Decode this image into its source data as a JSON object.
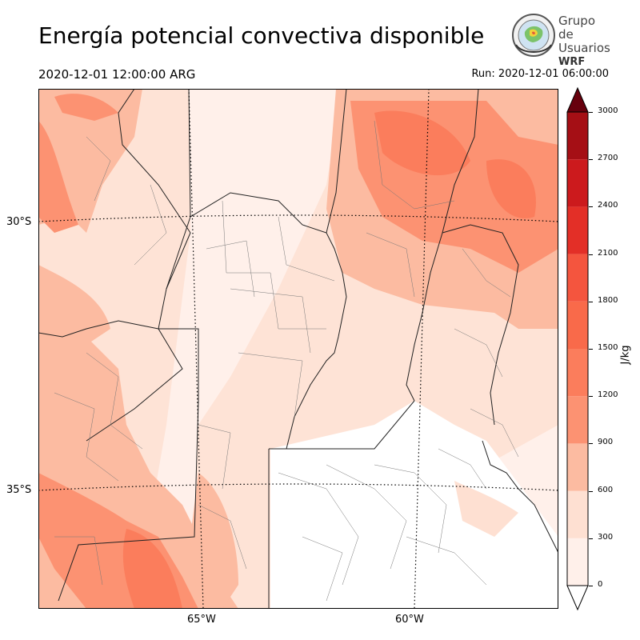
{
  "title": "Energía potencial convectiva disponible",
  "valid_time": "2020-12-01 12:00:00 ARG",
  "run_time": "Run: 2020-12-01 06:00:00",
  "logo": {
    "line1": "Grupo de",
    "line2": "Usuarios",
    "line3": "WRF"
  },
  "axes": {
    "lat_labels": [
      "30°S",
      "35°S"
    ],
    "lon_labels": [
      "65°W",
      "60°W"
    ]
  },
  "colorbar": {
    "unit": "J/kg",
    "ticks": [
      "0",
      "300",
      "600",
      "900",
      "1200",
      "1500",
      "1800",
      "2100",
      "2400",
      "2700",
      "3000"
    ],
    "colors": [
      "#fff0ea",
      "#fee0d2",
      "#fcbba1",
      "#fc9272",
      "#fb7d5c",
      "#f96a4a",
      "#f4553e",
      "#e32f27",
      "#cc1a1d",
      "#a50f15",
      "#7a0510"
    ],
    "over_color": "#67000d"
  }
}
